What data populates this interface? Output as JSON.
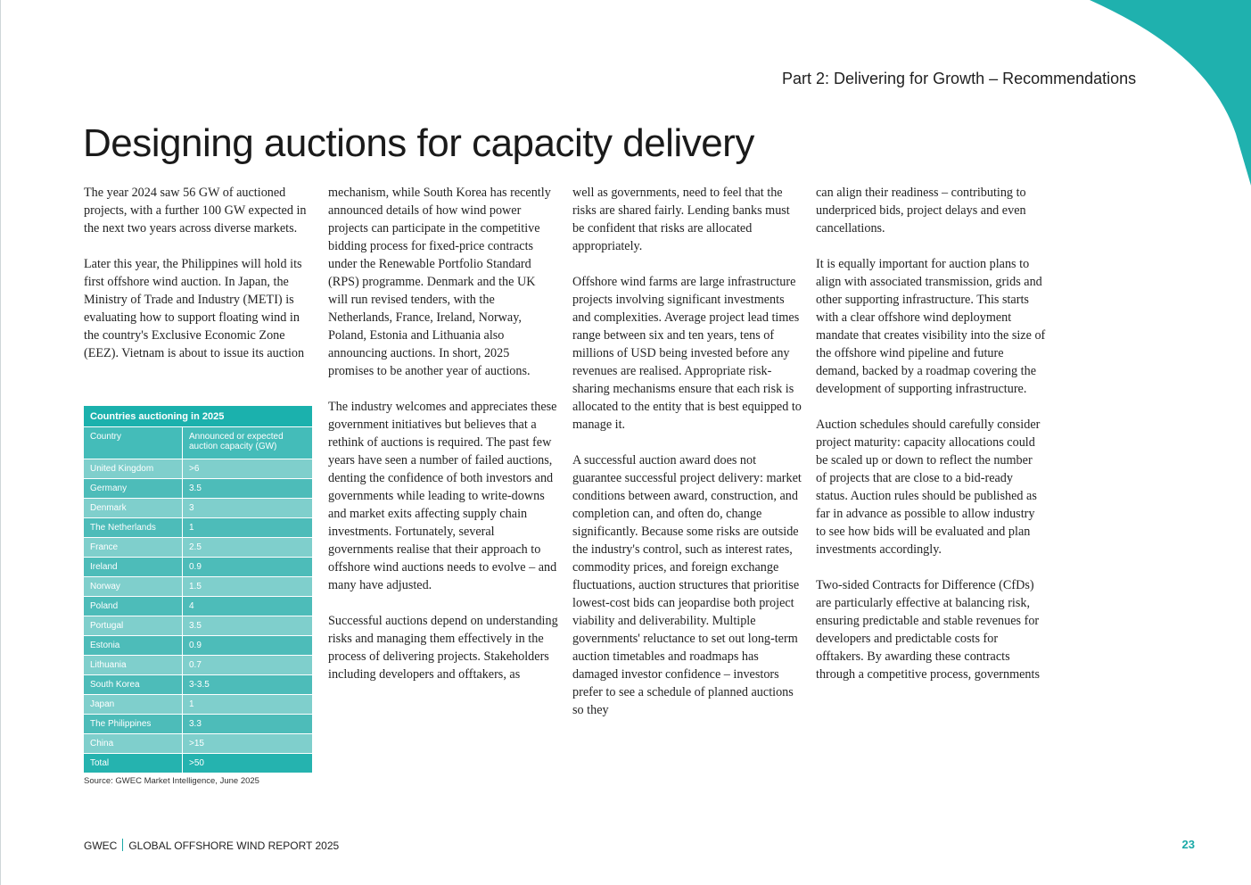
{
  "colors": {
    "accent": "#1bb1ad",
    "page_number": "#1aa9a7"
  },
  "header": {
    "section_label": "Part 2: Delivering for Growth – Recommendations"
  },
  "title": "Designing auctions for capacity delivery",
  "columns": {
    "col1": [
      "The year 2024 saw 56 GW of auctioned projects, with a further 100 GW expected in the next two years across diverse markets.",
      "Later this year, the Philippines will hold its first offshore wind auction. In Japan, the Ministry of Trade and Industry (METI) is evaluating how to support floating wind in the country's Exclusive Economic Zone (EEZ). Vietnam is about to issue its auction"
    ],
    "col2": [
      "mechanism, while South Korea has recently announced details of how wind power projects can participate in the competitive bidding process for fixed-price contracts under the Renewable Portfolio Standard (RPS) programme. Denmark and the UK will run revised tenders, with the Netherlands, France, Ireland, Norway, Poland, Estonia and Lithuania also announcing auctions. In short, 2025 promises to be another year of auctions.",
      "The industry welcomes and appreciates these government initiatives but believes that a rethink of auctions is required. The past few years have seen a number of failed auctions, denting the confidence of both investors and governments while leading to write-downs and market exits affecting supply chain investments.  Fortunately, several governments realise that their approach to offshore wind auctions needs to evolve – and many have adjusted.",
      "Successful auctions depend on understanding risks and managing them effectively in the process of delivering projects.  Stakeholders including developers and offtakers, as"
    ],
    "col3": [
      "well as governments, need to feel that the risks are shared fairly.  Lending banks must be confident that risks are allocated appropriately.",
      "Offshore wind farms are large infrastructure projects involving significant investments and complexities. Average project lead times range between six and ten years, tens of millions of USD being invested before any revenues are realised. Appropriate risk-sharing mechanisms ensure that each risk is allocated to the entity that is best equipped to manage it.",
      "A successful auction award does not guarantee successful project delivery: market conditions between award, construction, and completion can, and often do, change significantly. Because some risks are outside the industry's control, such as interest rates, commodity prices, and foreign exchange fluctuations, auction structures that prioritise lowest-cost bids can jeopardise both project viability and deliverability. Multiple governments' reluctance to set out long-term auction timetables and roadmaps has damaged investor confidence – investors prefer to see a schedule of planned auctions so they"
    ],
    "col4": [
      "can align their readiness – contributing to underpriced bids, project delays and even cancellations.",
      "It is equally important for auction plans to align with associated transmission, grids and other supporting infrastructure. This starts with a clear offshore wind deployment mandate that creates visibility into the size of the offshore wind pipeline and future demand, backed by a roadmap covering the development of supporting infrastructure.",
      "Auction schedules should carefully consider project maturity: capacity allocations could be scaled up or down to reflect the number of projects that are close to a bid-ready status. Auction rules should be published as far in advance as possible to allow industry to see how bids will be evaluated and plan investments accordingly.",
      "Two-sided Contracts for Difference (CfDs) are particularly effective at balancing risk, ensuring predictable and stable revenues for developers and predictable costs for offtakers. By awarding these contracts through a competitive process, governments"
    ]
  },
  "table": {
    "caption": "Countries auctioning in 2025",
    "headers": [
      "Country",
      "Announced or expected auction capacity (GW)"
    ],
    "rows": [
      [
        "United Kingdom",
        ">6"
      ],
      [
        "Germany",
        "3.5"
      ],
      [
        "Denmark",
        "3"
      ],
      [
        "The Netherlands",
        "1"
      ],
      [
        "France",
        "2.5"
      ],
      [
        "Ireland",
        "0.9"
      ],
      [
        "Norway",
        "1.5"
      ],
      [
        "Poland",
        "4"
      ],
      [
        "Portugal",
        "3.5"
      ],
      [
        "Estonia",
        "0.9"
      ],
      [
        "Lithuania",
        "0.7"
      ],
      [
        "South Korea",
        "3-3.5"
      ],
      [
        "Japan",
        "1"
      ],
      [
        "The Philippines",
        "3.3"
      ],
      [
        "China",
        ">15"
      ]
    ],
    "total": [
      "Total",
      ">50"
    ],
    "source": "Source: GWEC Market Intelligence, June 2025"
  },
  "footer": {
    "brand": "GWEC",
    "report": "GLOBAL OFFSHORE WIND REPORT 2025",
    "page_number": "23"
  }
}
